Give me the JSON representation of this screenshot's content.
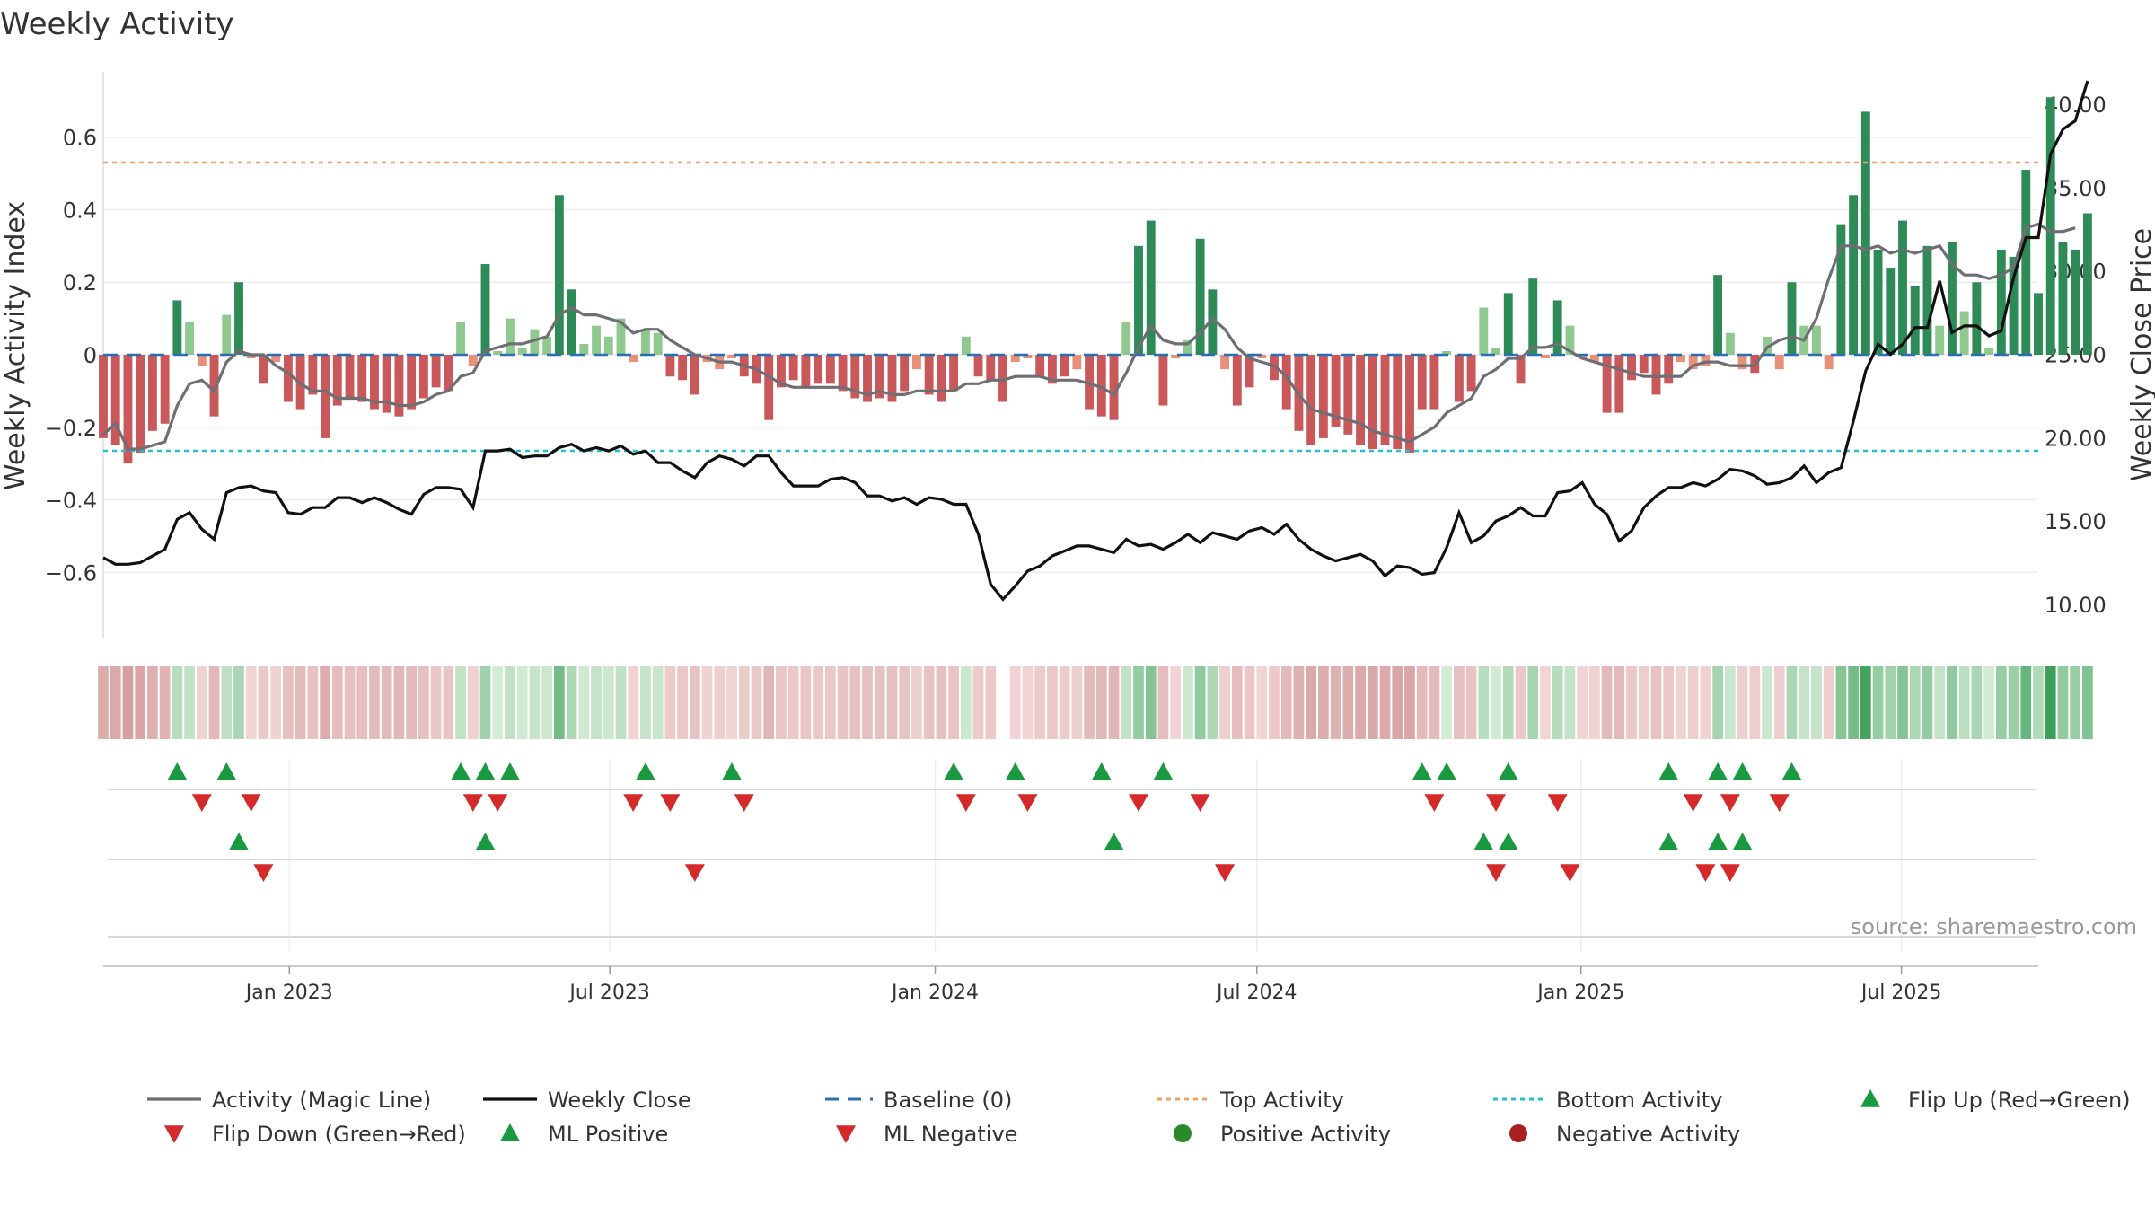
{
  "chart_data": {
    "type": "bar",
    "title": "Weekly Activity",
    "source_note": "source: sharemaestro.com",
    "y_left": {
      "label": "Weekly Activity Index",
      "ylim": [
        -0.78,
        0.78
      ],
      "ticks": [
        0.6,
        0.4,
        0.2,
        0,
        -0.2,
        -0.4,
        -0.6
      ],
      "tick_labels": [
        "0.6",
        "0.4",
        "0.2",
        "0",
        "−0.2",
        "−0.4",
        "−0.6"
      ]
    },
    "y_right": {
      "label": "Weekly Close Price",
      "ylim": [
        8.0,
        41.94
      ],
      "ticks": [
        40,
        35,
        30,
        25,
        20,
        15,
        10
      ],
      "tick_labels": [
        "40.00",
        "35.00",
        "30.00",
        "25.00",
        "20.00",
        "15.00",
        "10.00"
      ]
    },
    "x_axis": {
      "week_range": [
        0,
        157
      ],
      "ticks": [
        {
          "label": "Jan 2023",
          "week": 15.1
        },
        {
          "label": "Jul 2023",
          "week": 41.1
        },
        {
          "label": "Jan 2024",
          "week": 67.5
        },
        {
          "label": "Jul 2024",
          "week": 93.6
        },
        {
          "label": "Jan 2025",
          "week": 119.9
        },
        {
          "label": "Jul 2025",
          "week": 145.9
        }
      ]
    },
    "reference_lines": {
      "baseline": 0,
      "top_activity": 0.53,
      "bottom_activity": -0.265
    },
    "colors": {
      "strong_green": "#2e8b57",
      "light_green": "#8fc98f",
      "strong_red": "#c8585a",
      "light_red": "#e8907a",
      "magic_line": "#6e6e74",
      "close_line": "#111111",
      "baseline": "#2a6fb0",
      "top_activity": "#f0a060",
      "bottom_activity": "#22c0d0",
      "marker_green": "#1a9a40",
      "marker_red": "#d42a2a",
      "dot_green": "#2a8a2a",
      "dot_red": "#a82020"
    },
    "series": [
      {
        "name": "Activity",
        "values": [
          -0.23,
          -0.25,
          -0.3,
          -0.27,
          -0.21,
          -0.19,
          0.15,
          0.09,
          -0.03,
          -0.17,
          0.11,
          0.2,
          -0.01,
          -0.08,
          -0.02,
          -0.13,
          -0.15,
          -0.11,
          -0.23,
          -0.14,
          -0.12,
          -0.13,
          -0.15,
          -0.16,
          -0.17,
          -0.15,
          -0.12,
          -0.09,
          -0.1,
          0.09,
          -0.03,
          0.25,
          0.01,
          0.1,
          0.02,
          0.07,
          0.05,
          0.44,
          0.18,
          0.03,
          0.08,
          0.05,
          0.1,
          -0.02,
          0.07,
          0.06,
          -0.06,
          -0.07,
          -0.11,
          -0.02,
          -0.04,
          -0.01,
          -0.06,
          -0.08,
          -0.18,
          -0.09,
          -0.07,
          -0.09,
          -0.08,
          -0.08,
          -0.1,
          -0.12,
          -0.13,
          -0.12,
          -0.13,
          -0.1,
          -0.04,
          -0.11,
          -0.13,
          -0.1,
          0.05,
          -0.06,
          -0.07,
          -0.13,
          -0.02,
          -0.01,
          -0.06,
          -0.08,
          -0.06,
          -0.04,
          -0.15,
          -0.17,
          -0.18,
          0.09,
          0.3,
          0.37,
          -0.14,
          -0.01,
          0.04,
          0.32,
          0.18,
          -0.04,
          -0.14,
          -0.09,
          -0.01,
          -0.07,
          -0.15,
          -0.21,
          -0.25,
          -0.23,
          -0.2,
          -0.22,
          -0.25,
          -0.26,
          -0.25,
          -0.26,
          -0.27,
          -0.15,
          -0.15,
          0.01,
          -0.13,
          -0.1,
          0.13,
          0.02,
          0.17,
          -0.08,
          0.21,
          -0.01,
          0.15,
          0.08,
          -0.01,
          -0.02,
          -0.16,
          -0.16,
          -0.07,
          -0.05,
          -0.11,
          -0.08,
          -0.02,
          -0.04,
          -0.03,
          0.22,
          0.06,
          -0.04,
          -0.05,
          0.05,
          -0.04,
          0.2,
          0.08,
          0.08,
          -0.04,
          0.36,
          0.44,
          0.67,
          0.29,
          0.24,
          0.37,
          0.19,
          0.3,
          0.08,
          0.31,
          0.12,
          0.2,
          0.02,
          0.29,
          0.27,
          0.51,
          0.17,
          0.71,
          0.31,
          0.29,
          0.39
        ]
      },
      {
        "name": "Activity (Magic Line)",
        "values": [
          -0.22,
          -0.19,
          -0.26,
          -0.26,
          -0.25,
          -0.24,
          -0.14,
          -0.08,
          -0.07,
          -0.1,
          -0.02,
          0.01,
          0.0,
          0.0,
          -0.03,
          -0.05,
          -0.08,
          -0.1,
          -0.1,
          -0.12,
          -0.12,
          -0.12,
          -0.13,
          -0.13,
          -0.14,
          -0.14,
          -0.13,
          -0.11,
          -0.1,
          -0.06,
          -0.05,
          0.01,
          0.02,
          0.03,
          0.03,
          0.04,
          0.05,
          0.11,
          0.13,
          0.11,
          0.11,
          0.1,
          0.09,
          0.06,
          0.07,
          0.07,
          0.04,
          0.02,
          0.0,
          -0.01,
          -0.02,
          -0.02,
          -0.03,
          -0.04,
          -0.06,
          -0.08,
          -0.09,
          -0.09,
          -0.09,
          -0.09,
          -0.09,
          -0.1,
          -0.11,
          -0.1,
          -0.11,
          -0.11,
          -0.1,
          -0.1,
          -0.1,
          -0.1,
          -0.08,
          -0.08,
          -0.07,
          -0.07,
          -0.06,
          -0.06,
          -0.06,
          -0.07,
          -0.07,
          -0.07,
          -0.08,
          -0.09,
          -0.11,
          -0.05,
          0.02,
          0.08,
          0.04,
          0.03,
          0.03,
          0.06,
          0.1,
          0.07,
          0.02,
          -0.01,
          -0.02,
          -0.03,
          -0.06,
          -0.11,
          -0.15,
          -0.16,
          -0.17,
          -0.18,
          -0.19,
          -0.21,
          -0.22,
          -0.23,
          -0.24,
          -0.22,
          -0.2,
          -0.16,
          -0.14,
          -0.12,
          -0.06,
          -0.04,
          -0.01,
          -0.01,
          0.02,
          0.02,
          0.03,
          0.01,
          -0.01,
          -0.02,
          -0.03,
          -0.04,
          -0.05,
          -0.06,
          -0.06,
          -0.06,
          -0.06,
          -0.03,
          -0.02,
          -0.02,
          -0.03,
          -0.03,
          -0.03,
          0.02,
          0.04,
          0.05,
          0.04,
          0.1,
          0.21,
          0.3,
          0.3,
          0.29,
          0.3,
          0.28,
          0.29,
          0.28,
          0.29,
          0.3,
          0.25,
          0.22,
          0.22,
          0.21,
          0.22,
          0.24,
          0.35,
          0.36,
          0.34,
          0.34,
          0.35
        ]
      },
      {
        "name": "Weekly Close",
        "values": [
          12.8,
          12.4,
          12.4,
          12.5,
          12.9,
          13.3,
          15.1,
          15.5,
          14.5,
          13.9,
          16.7,
          17.0,
          17.1,
          16.8,
          16.7,
          15.5,
          15.4,
          15.8,
          15.8,
          16.4,
          16.4,
          16.1,
          16.4,
          16.1,
          15.7,
          15.4,
          16.6,
          17.0,
          17.0,
          16.9,
          15.8,
          19.2,
          19.2,
          19.3,
          18.8,
          18.9,
          18.9,
          19.4,
          19.6,
          19.2,
          19.4,
          19.2,
          19.5,
          19.0,
          19.2,
          18.5,
          18.5,
          18.0,
          17.6,
          18.5,
          18.9,
          18.7,
          18.3,
          18.9,
          18.9,
          17.9,
          17.1,
          17.1,
          17.1,
          17.5,
          17.6,
          17.3,
          16.5,
          16.5,
          16.2,
          16.4,
          16.0,
          16.4,
          16.3,
          16.0,
          16.0,
          14.2,
          11.2,
          10.3,
          11.1,
          12.0,
          12.3,
          12.9,
          13.2,
          13.5,
          13.5,
          13.3,
          13.1,
          13.9,
          13.5,
          13.6,
          13.3,
          13.7,
          14.2,
          13.7,
          14.3,
          14.1,
          13.9,
          14.4,
          14.6,
          14.2,
          14.8,
          13.9,
          13.3,
          12.9,
          12.6,
          12.8,
          13.0,
          12.6,
          11.7,
          12.3,
          12.2,
          11.8,
          11.9,
          13.4,
          15.5,
          13.7,
          14.1,
          15.0,
          15.3,
          15.8,
          15.3,
          15.3,
          16.7,
          16.8,
          17.3,
          16.0,
          15.4,
          13.8,
          14.4,
          15.8,
          16.5,
          17.0,
          17.0,
          17.3,
          17.1,
          17.5,
          18.1,
          18.0,
          17.7,
          17.2,
          17.3,
          17.6,
          18.3,
          17.3,
          17.9,
          18.2,
          21.0,
          24.0,
          25.6,
          25.0,
          25.6,
          26.6,
          26.6,
          29.4,
          26.3,
          26.7,
          26.7,
          26.1,
          26.4,
          29.6,
          32.0,
          32.0,
          37.0,
          38.5,
          39.0,
          41.4
        ]
      }
    ],
    "gradient_band": {
      "gap_week": 73
    },
    "marker_rows": [
      {
        "name": "Flip Up (Red→Green)",
        "shape": "triangle-up",
        "color": "marker_green",
        "weeks": [
          6,
          10,
          29,
          31,
          33,
          44,
          51,
          69,
          74,
          81,
          86,
          107,
          109,
          114,
          127,
          131,
          133,
          137
        ]
      },
      {
        "name": "Flip Down (Green→Red)",
        "shape": "triangle-down",
        "color": "marker_red",
        "weeks": [
          8,
          12,
          30,
          32,
          43,
          46,
          52,
          70,
          75,
          84,
          89,
          108,
          113,
          118,
          129,
          132,
          136
        ]
      },
      {
        "name": "ML Positive",
        "shape": "triangle-up",
        "color": "marker_green",
        "weeks": [
          11,
          31,
          82,
          112,
          114,
          127,
          131,
          133
        ]
      },
      {
        "name": "ML Negative",
        "shape": "triangle-down",
        "color": "marker_red",
        "weeks": [
          13,
          48,
          91,
          113,
          119,
          130,
          132
        ]
      }
    ],
    "legend": [
      {
        "label": "Activity (Magic Line)",
        "kind": "line",
        "color": "#6e6e74"
      },
      {
        "label": "Weekly Close",
        "kind": "line",
        "color": "#111111"
      },
      {
        "label": "Baseline (0)",
        "kind": "dash",
        "color": "#2a6fb0"
      },
      {
        "label": "Top Activity",
        "kind": "dot",
        "color": "#f0a060"
      },
      {
        "label": "Bottom Activity",
        "kind": "dot",
        "color": "#22c0d0"
      },
      {
        "label": "Flip Up (Red→Green)",
        "kind": "tri-up",
        "color": "#1a9a40"
      },
      {
        "label": "Flip Down (Green→Red)",
        "kind": "tri-down",
        "color": "#d42a2a"
      },
      {
        "label": "ML Positive",
        "kind": "tri-up",
        "color": "#1a9a40"
      },
      {
        "label": "ML Negative",
        "kind": "tri-down",
        "color": "#d42a2a"
      },
      {
        "label": "Positive Activity",
        "kind": "circle",
        "color": "#2a8a2a"
      },
      {
        "label": "Negative Activity",
        "kind": "circle",
        "color": "#a82020"
      }
    ]
  }
}
